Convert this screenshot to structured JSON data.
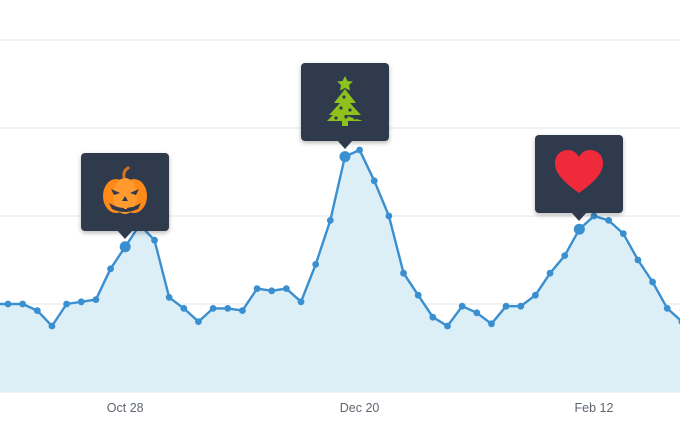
{
  "chart_data": {
    "type": "area",
    "title": "",
    "xlabel": "",
    "ylabel": "",
    "ylim": [
      0,
      100
    ],
    "grid": true,
    "tick_labels": [
      "Oct 28",
      "Dec 20",
      "Feb 12"
    ],
    "tick_index": [
      8,
      24,
      40
    ],
    "y_grid_values": [
      20,
      40,
      60,
      80
    ],
    "values": [
      20,
      20,
      18.5,
      15,
      20,
      20.5,
      21,
      28,
      33,
      38,
      34.5,
      21.5,
      19,
      16,
      19,
      19,
      18.5,
      23.5,
      23,
      23.5,
      20.5,
      29,
      39,
      53.5,
      55,
      48,
      40,
      27,
      22,
      17,
      15,
      19.5,
      18,
      15.5,
      19.5,
      19.5,
      22,
      27,
      31,
      37,
      40,
      39,
      36,
      30,
      25,
      19,
      16,
      13,
      16
    ],
    "line_color": "#3a8fd0",
    "fill_color": "#dceef6",
    "grid_color": "#e3e6ea",
    "callouts": [
      {
        "index": 8,
        "icon": "pumpkin-icon"
      },
      {
        "index": 23,
        "icon": "christmas-tree-icon"
      },
      {
        "index": 39,
        "icon": "heart-icon"
      }
    ]
  }
}
